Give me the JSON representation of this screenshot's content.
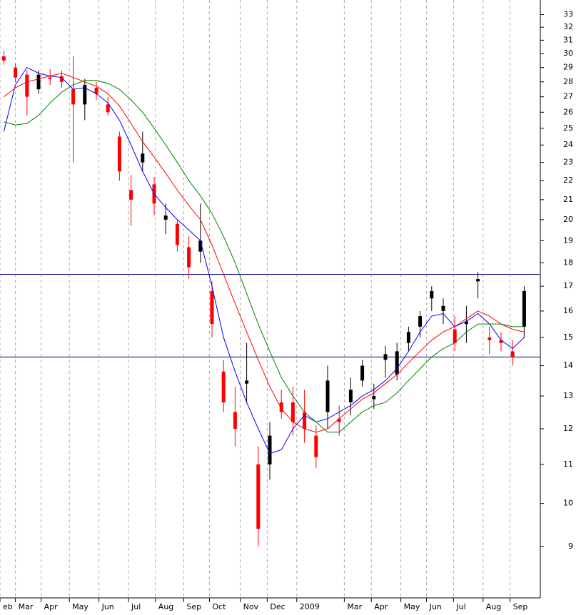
{
  "chart_data": {
    "type": "candlestick",
    "log_scale": true,
    "grid": true,
    "up_color": "#000000",
    "down_color": "#ff0000",
    "xlim": [
      0,
      420
    ],
    "ylim": [
      7.94,
      34.2
    ],
    "yticks": [
      9,
      10,
      11,
      12,
      13,
      14,
      15,
      16,
      17,
      18,
      19,
      20,
      21,
      22,
      23,
      24,
      25,
      26,
      27,
      28,
      29,
      30,
      31,
      32,
      33
    ],
    "xticks": [
      {
        "value": 0,
        "label": "eb"
      },
      {
        "value": 12,
        "label": "Mar"
      },
      {
        "value": 32,
        "label": "Apr"
      },
      {
        "value": 54,
        "label": "May"
      },
      {
        "value": 77,
        "label": "Jun"
      },
      {
        "value": 100,
        "label": "Jul"
      },
      {
        "value": 121,
        "label": "Aug"
      },
      {
        "value": 143,
        "label": "Sep"
      },
      {
        "value": 163,
        "label": "Oct"
      },
      {
        "value": 187,
        "label": "Nov"
      },
      {
        "value": 208,
        "label": "Dec"
      },
      {
        "value": 231,
        "label": "2009"
      },
      {
        "value": 268,
        "label": "Mar"
      },
      {
        "value": 289,
        "label": "Apr"
      },
      {
        "value": 312,
        "label": "May"
      },
      {
        "value": 332,
        "label": "Jun"
      },
      {
        "value": 353,
        "label": "Jul"
      },
      {
        "value": 376,
        "label": "Aug"
      },
      {
        "value": 397,
        "label": "Sep"
      }
    ],
    "hlines": [
      {
        "value": 17.5,
        "color": "#000080"
      },
      {
        "value": 14.3,
        "color": "#000080"
      }
    ],
    "x": [
      3,
      12,
      21,
      30,
      39,
      48,
      57,
      66,
      75,
      84,
      93,
      102,
      111,
      120,
      129,
      138,
      147,
      156,
      165,
      174,
      183,
      192,
      201,
      210,
      219,
      228,
      237,
      246,
      255,
      264,
      273,
      282,
      291,
      300,
      309,
      318,
      327,
      336,
      345,
      354,
      363,
      372,
      381,
      390,
      399,
      408
    ],
    "open": [
      29.8,
      29,
      28.5,
      27.5,
      28.3,
      28.4,
      27.5,
      26.5,
      27.6,
      26.5,
      24.5,
      21.5,
      23,
      21.8,
      20,
      19.8,
      18.7,
      18.5,
      16.8,
      13.8,
      12.5,
      13.4,
      11,
      11,
      12.8,
      12.8,
      12.5,
      11.8,
      12.5,
      12.3,
      12.8,
      13.5,
      12.9,
      14.2,
      13.7,
      14.8,
      15.4,
      16.5,
      16,
      15.3,
      15.5,
      17.2,
      15,
      14.9,
      14.5,
      15.4
    ],
    "high": [
      30.2,
      29.3,
      28.8,
      28.8,
      28.9,
      28.8,
      29.8,
      28.2,
      28,
      27,
      24.8,
      22.3,
      24.8,
      22.2,
      20.8,
      20,
      19.2,
      20.8,
      17.2,
      14.2,
      13.3,
      14.8,
      11.5,
      12.2,
      13.2,
      13.3,
      13.2,
      12.1,
      14,
      12.7,
      13.6,
      14.2,
      13.4,
      14.7,
      14.8,
      15.4,
      16,
      17,
      16.5,
      15.8,
      16.2,
      17.6,
      15.4,
      15.2,
      14.9,
      17
    ],
    "low": [
      29.2,
      28,
      25.8,
      27.2,
      27.8,
      27.6,
      23,
      25.5,
      26.8,
      25.8,
      22,
      19.7,
      22.5,
      20.2,
      19.3,
      18.5,
      17.3,
      18,
      15,
      12.5,
      11.5,
      12.8,
      9,
      10.6,
      12.3,
      11.8,
      11.6,
      10.9,
      12,
      11.8,
      12.4,
      13.3,
      12.6,
      13.6,
      13.5,
      14.5,
      15,
      16,
      15.5,
      14.5,
      14.8,
      16.5,
      14.4,
      14.5,
      14,
      15
    ],
    "close": [
      29.5,
      28.3,
      27,
      28.5,
      28.2,
      28,
      26.5,
      27.8,
      27.2,
      26,
      22.5,
      21,
      23.5,
      20.8,
      20.2,
      18.8,
      17.8,
      19,
      15.5,
      12.8,
      12,
      13.5,
      9.4,
      11.8,
      12.5,
      12.2,
      12,
      11.2,
      13.5,
      12.2,
      13.2,
      14,
      13,
      14.4,
      14.5,
      15.2,
      15.8,
      16.8,
      16.2,
      14.8,
      15.6,
      17.3,
      14.9,
      14.8,
      14.3,
      16.8
    ],
    "series": [
      {
        "color": "#0000ff",
        "values": [
          24.8,
          27.8,
          29,
          28.6,
          28.4,
          28.3,
          27.5,
          27.6,
          27.2,
          26.6,
          25.5,
          24,
          22.5,
          21.3,
          20.6,
          20,
          19.5,
          19,
          17,
          15,
          13.8,
          12.8,
          12,
          11.3,
          11.4,
          12,
          12.4,
          12.2,
          12.3,
          12.5,
          12.7,
          13,
          13.2,
          13.5,
          13.9,
          14.5,
          15.2,
          15.8,
          15.9,
          15.4,
          15.6,
          15.9,
          15.5,
          14.9,
          14.6,
          15
        ]
      },
      {
        "color": "#ff0000",
        "values": [
          27,
          27.6,
          28,
          28.2,
          28.4,
          28.6,
          28.3,
          28,
          27.7,
          27.2,
          26.4,
          25.3,
          24.2,
          23.3,
          22.4,
          21.5,
          20.7,
          20,
          18.8,
          17.5,
          16.3,
          15.2,
          14.2,
          13.3,
          12.6,
          12.2,
          12,
          11.9,
          12,
          12.3,
          12.6,
          12.9,
          13.1,
          13.4,
          13.7,
          14.1,
          14.5,
          14.9,
          15.2,
          15.4,
          15.7,
          16,
          15.8,
          15.5,
          15.3,
          15.2
        ]
      },
      {
        "color": "#008000",
        "values": [
          25.4,
          25.2,
          25.3,
          25.8,
          26.6,
          27.3,
          27.8,
          28.1,
          28.1,
          27.9,
          27.5,
          26.8,
          26,
          25,
          24,
          23,
          22,
          21.2,
          20.3,
          19.2,
          18,
          16.7,
          15.5,
          14.5,
          13.6,
          13,
          12.5,
          12.2,
          11.9,
          11.9,
          12.2,
          12.5,
          12.7,
          12.8,
          13.1,
          13.5,
          13.9,
          14.3,
          14.6,
          14.8,
          15.2,
          15.5,
          15.5,
          15.5,
          15.4,
          15.4
        ]
      }
    ]
  }
}
